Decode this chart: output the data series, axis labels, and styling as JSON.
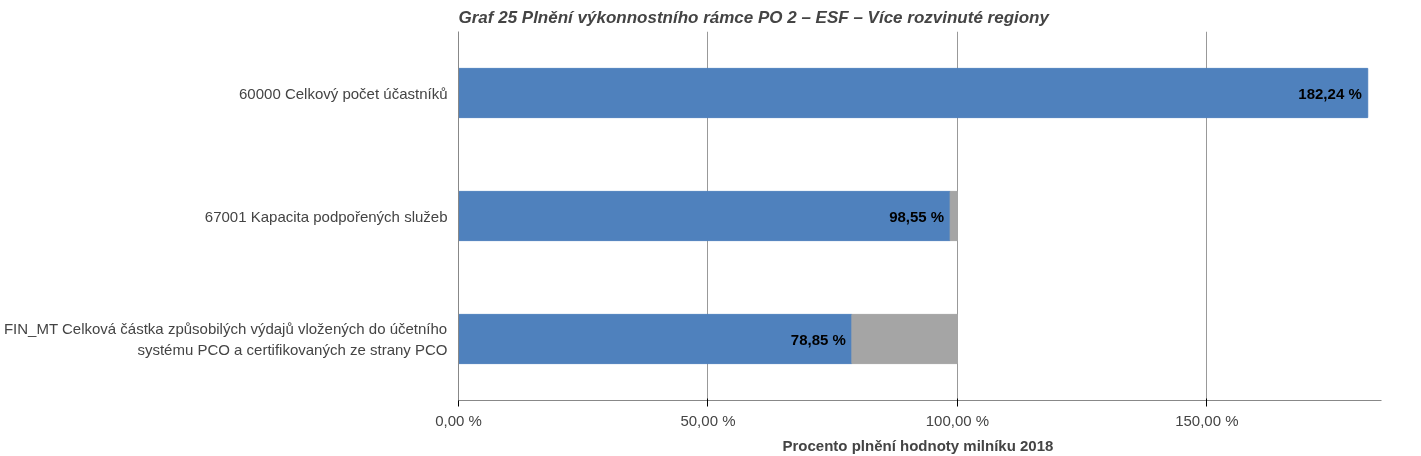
{
  "chart_data": {
    "type": "bar",
    "orientation": "horizontal",
    "stacked": true,
    "title": "Graf 25 Plnění výkonnostního rámce PO 2 – ESF – Více rozvinuté regiony",
    "xlabel": "Procento plnění hodnoty  milníku 2018",
    "categories": [
      "60000 Celkový počet účastníků",
      "67001 Kapacita podpořených služeb",
      "FIN_MT Celková částka způsobilých výdajů vložených do účetního systému PCO a certifikovaných ze strany PCO"
    ],
    "series": [
      {
        "color": "#4f81bd",
        "values": [
          182.24,
          98.55,
          78.85
        ],
        "value_labels": [
          "182,24 %",
          "98,55 %",
          "78,85 %"
        ]
      },
      {
        "color": "#a5a5a5",
        "values": [
          null,
          1.45,
          21.15
        ]
      }
    ],
    "xlim": [
      0,
      185
    ],
    "xticks": [
      {
        "value": 0,
        "label": "0,00 %"
      },
      {
        "value": 50,
        "label": "50,00 %"
      },
      {
        "value": 100,
        "label": "100,00 %"
      },
      {
        "value": 150,
        "label": "150,00 %"
      }
    ],
    "grid": "x"
  }
}
